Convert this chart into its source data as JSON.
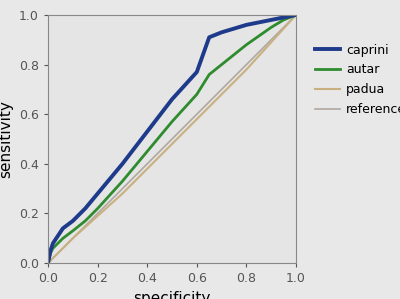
{
  "background_color": "#e8e8e8",
  "plot_bg_color": "#e5e5e5",
  "xlim": [
    0.0,
    1.0
  ],
  "ylim": [
    0.0,
    1.0
  ],
  "xlabel": "specificity",
  "ylabel": "sensitivity",
  "xticks": [
    0.0,
    0.2,
    0.4,
    0.6,
    0.8,
    1.0
  ],
  "yticks": [
    0.0,
    0.2,
    0.4,
    0.6,
    0.8,
    1.0
  ],
  "caprini": {
    "x": [
      0.0,
      0.01,
      0.02,
      0.04,
      0.06,
      0.1,
      0.15,
      0.2,
      0.3,
      0.4,
      0.5,
      0.6,
      0.65,
      0.7,
      0.8,
      0.9,
      0.95,
      1.0
    ],
    "y": [
      0.0,
      0.05,
      0.08,
      0.11,
      0.14,
      0.17,
      0.22,
      0.28,
      0.4,
      0.53,
      0.66,
      0.77,
      0.91,
      0.93,
      0.96,
      0.98,
      0.99,
      1.0
    ],
    "color": "#1e3a8a",
    "linewidth": 2.8,
    "label": "caprini"
  },
  "autar": {
    "x": [
      0.0,
      0.01,
      0.02,
      0.04,
      0.06,
      0.1,
      0.15,
      0.2,
      0.3,
      0.4,
      0.5,
      0.6,
      0.65,
      0.7,
      0.8,
      0.9,
      0.95,
      1.0
    ],
    "y": [
      0.0,
      0.04,
      0.06,
      0.08,
      0.1,
      0.13,
      0.17,
      0.22,
      0.33,
      0.45,
      0.57,
      0.68,
      0.76,
      0.8,
      0.88,
      0.95,
      0.98,
      1.0
    ],
    "color": "#2e8b2e",
    "linewidth": 2.0,
    "label": "autar"
  },
  "padua": {
    "x": [
      0.0,
      0.02,
      0.05,
      0.1,
      0.2,
      0.3,
      0.4,
      0.5,
      0.6,
      0.7,
      0.8,
      0.9,
      1.0
    ],
    "y": [
      0.0,
      0.02,
      0.05,
      0.1,
      0.19,
      0.28,
      0.38,
      0.48,
      0.58,
      0.68,
      0.78,
      0.89,
      1.0
    ],
    "color": "#c8b080",
    "linewidth": 1.5,
    "label": "padua"
  },
  "reference": {
    "x": [
      0.0,
      1.0
    ],
    "y": [
      0.0,
      1.0
    ],
    "color": "#b0a8a0",
    "linewidth": 1.2,
    "label": "reference"
  },
  "legend_fontsize": 9,
  "axis_label_fontsize": 11,
  "tick_fontsize": 9
}
